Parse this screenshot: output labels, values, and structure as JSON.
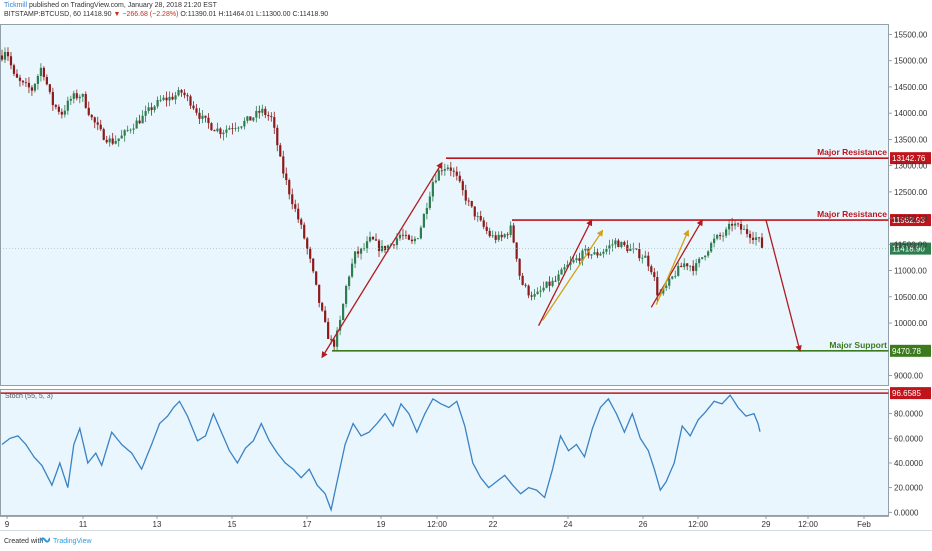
{
  "header": {
    "brand": "Tickmill",
    "published": "published on TradingView.com, January 28, 2018 21:20 EST",
    "symbol": "BITSTAMP:BTCUSD, 60",
    "last": "11418.90",
    "change": "▼ −266.68 (−2.28%)",
    "ohlc": "O:11390.01 H:11464.01 L:11300.00 C:11418.90"
  },
  "footer": {
    "created": "Created with",
    "logo": "TradingView"
  },
  "colors": {
    "plot_bg": "#eaf6fd",
    "resistance": "#c0141c",
    "support": "#3c7a1e",
    "up": "#2e7d4f",
    "down": "#8b1a1a",
    "stoch": "#3a82c4",
    "arrow_dark": "#b01c22",
    "arrow_gold": "#d4a017"
  },
  "chart_data": [
    {
      "type": "candlestick",
      "series": [
        {
          "name": "BITSTAMP:BTCUSD, 60"
        }
      ],
      "x_ticks": [
        "9",
        "11",
        "13",
        "15",
        "17",
        "19",
        "12:00",
        "22",
        "24",
        "26",
        "12:00",
        "29",
        "12:00",
        "Feb"
      ],
      "y_ticks": [
        "15500.00",
        "15000.00",
        "14500.00",
        "14000.00",
        "13500.00",
        "13000.00",
        "12500.00",
        "12000.00",
        "11500.00",
        "11000.00",
        "10500.00",
        "10000.00",
        "9000.00"
      ],
      "ylim": [
        8800,
        15700
      ],
      "last_price": 11418.9,
      "levels": [
        {
          "label": "Major Resistance",
          "value": 13142.76,
          "value_label": "13142.76"
        },
        {
          "label": "Major Resistance",
          "value": 11962.93,
          "value_label": "11962.93"
        },
        {
          "label": "Major Support",
          "value": 9470.78,
          "value_label": "9470.78"
        }
      ],
      "last_label": "11418.90",
      "anchors": [
        [
          0,
          15100
        ],
        [
          4,
          15250
        ],
        [
          12,
          14700
        ],
        [
          20,
          14550
        ],
        [
          30,
          14450
        ],
        [
          40,
          14900
        ],
        [
          50,
          14200
        ],
        [
          60,
          14000
        ],
        [
          70,
          14300
        ],
        [
          80,
          14350
        ],
        [
          90,
          13900
        ],
        [
          100,
          13600
        ],
        [
          110,
          13450
        ],
        [
          120,
          13550
        ],
        [
          130,
          13750
        ],
        [
          140,
          13900
        ],
        [
          150,
          14100
        ],
        [
          160,
          14250
        ],
        [
          170,
          14300
        ],
        [
          180,
          14400
        ],
        [
          190,
          14200
        ],
        [
          200,
          13900
        ],
        [
          210,
          13750
        ],
        [
          220,
          13650
        ],
        [
          230,
          13750
        ],
        [
          240,
          13800
        ],
        [
          250,
          13900
        ],
        [
          260,
          14050
        ],
        [
          270,
          13900
        ],
        [
          275,
          13500
        ],
        [
          280,
          13000
        ],
        [
          288,
          12500
        ],
        [
          295,
          12100
        ],
        [
          302,
          11700
        ],
        [
          310,
          11100
        ],
        [
          318,
          10400
        ],
        [
          326,
          9800
        ],
        [
          332,
          9550
        ],
        [
          338,
          9900
        ],
        [
          346,
          10800
        ],
        [
          354,
          11300
        ],
        [
          362,
          11400
        ],
        [
          370,
          11600
        ],
        [
          380,
          11400
        ],
        [
          390,
          11500
        ],
        [
          400,
          11700
        ],
        [
          410,
          11500
        ],
        [
          418,
          11700
        ],
        [
          425,
          12200
        ],
        [
          432,
          12700
        ],
        [
          440,
          12950
        ],
        [
          448,
          13000
        ],
        [
          455,
          12800
        ],
        [
          462,
          12500
        ],
        [
          470,
          12200
        ],
        [
          480,
          11900
        ],
        [
          490,
          11650
        ],
        [
          500,
          11600
        ],
        [
          510,
          11800
        ],
        [
          515,
          11400
        ],
        [
          520,
          10800
        ],
        [
          527,
          10600
        ],
        [
          535,
          10500
        ],
        [
          545,
          10700
        ],
        [
          555,
          10800
        ],
        [
          565,
          11050
        ],
        [
          575,
          11200
        ],
        [
          585,
          11350
        ],
        [
          595,
          11300
        ],
        [
          605,
          11400
        ],
        [
          615,
          11550
        ],
        [
          625,
          11450
        ],
        [
          635,
          11350
        ],
        [
          645,
          11250
        ],
        [
          652,
          11000
        ],
        [
          658,
          10500
        ],
        [
          665,
          10650
        ],
        [
          675,
          10950
        ],
        [
          685,
          11150
        ],
        [
          695,
          11050
        ],
        [
          705,
          11350
        ],
        [
          715,
          11600
        ],
        [
          725,
          11700
        ],
        [
          732,
          11900
        ],
        [
          740,
          11800
        ],
        [
          750,
          11700
        ],
        [
          758,
          11600
        ],
        [
          763,
          11420
        ]
      ]
    },
    {
      "type": "line",
      "series": [
        {
          "name": "Stoch (55, 5, 3)"
        }
      ],
      "y_ticks": [
        "80.0000",
        "60.0000",
        "40.0000",
        "20.0000",
        "0.0000"
      ],
      "ylim": [
        -3,
        100
      ],
      "level": {
        "value": 96.6585,
        "value_label": "96.6585"
      },
      "anchors": [
        [
          0,
          55
        ],
        [
          8,
          60
        ],
        [
          16,
          62
        ],
        [
          24,
          55
        ],
        [
          32,
          45
        ],
        [
          40,
          38
        ],
        [
          50,
          22
        ],
        [
          58,
          40
        ],
        [
          66,
          20
        ],
        [
          72,
          55
        ],
        [
          78,
          68
        ],
        [
          86,
          40
        ],
        [
          94,
          48
        ],
        [
          100,
          38
        ],
        [
          110,
          65
        ],
        [
          120,
          55
        ],
        [
          130,
          48
        ],
        [
          140,
          35
        ],
        [
          150,
          55
        ],
        [
          158,
          72
        ],
        [
          166,
          78
        ],
        [
          172,
          85
        ],
        [
          178,
          90
        ],
        [
          186,
          78
        ],
        [
          196,
          58
        ],
        [
          204,
          62
        ],
        [
          212,
          80
        ],
        [
          220,
          65
        ],
        [
          228,
          50
        ],
        [
          236,
          40
        ],
        [
          244,
          52
        ],
        [
          252,
          58
        ],
        [
          260,
          72
        ],
        [
          268,
          58
        ],
        [
          276,
          48
        ],
        [
          284,
          40
        ],
        [
          292,
          35
        ],
        [
          300,
          28
        ],
        [
          308,
          35
        ],
        [
          316,
          22
        ],
        [
          324,
          15
        ],
        [
          330,
          2
        ],
        [
          336,
          25
        ],
        [
          344,
          55
        ],
        [
          352,
          72
        ],
        [
          360,
          62
        ],
        [
          368,
          65
        ],
        [
          376,
          72
        ],
        [
          384,
          80
        ],
        [
          392,
          70
        ],
        [
          400,
          88
        ],
        [
          408,
          80
        ],
        [
          416,
          65
        ],
        [
          424,
          80
        ],
        [
          432,
          92
        ],
        [
          440,
          88
        ],
        [
          448,
          85
        ],
        [
          456,
          90
        ],
        [
          464,
          70
        ],
        [
          472,
          40
        ],
        [
          480,
          28
        ],
        [
          488,
          20
        ],
        [
          496,
          25
        ],
        [
          504,
          30
        ],
        [
          512,
          22
        ],
        [
          520,
          15
        ],
        [
          528,
          20
        ],
        [
          536,
          18
        ],
        [
          544,
          12
        ],
        [
          552,
          35
        ],
        [
          560,
          62
        ],
        [
          568,
          50
        ],
        [
          576,
          55
        ],
        [
          584,
          45
        ],
        [
          592,
          68
        ],
        [
          600,
          85
        ],
        [
          608,
          92
        ],
        [
          616,
          80
        ],
        [
          624,
          65
        ],
        [
          632,
          80
        ],
        [
          640,
          60
        ],
        [
          648,
          50
        ],
        [
          654,
          35
        ],
        [
          660,
          18
        ],
        [
          666,
          25
        ],
        [
          674,
          40
        ],
        [
          682,
          70
        ],
        [
          690,
          62
        ],
        [
          698,
          75
        ],
        [
          706,
          82
        ],
        [
          714,
          90
        ],
        [
          722,
          88
        ],
        [
          730,
          95
        ],
        [
          738,
          85
        ],
        [
          746,
          78
        ],
        [
          754,
          80
        ],
        [
          758,
          72
        ],
        [
          761,
          62
        ]
      ]
    }
  ]
}
